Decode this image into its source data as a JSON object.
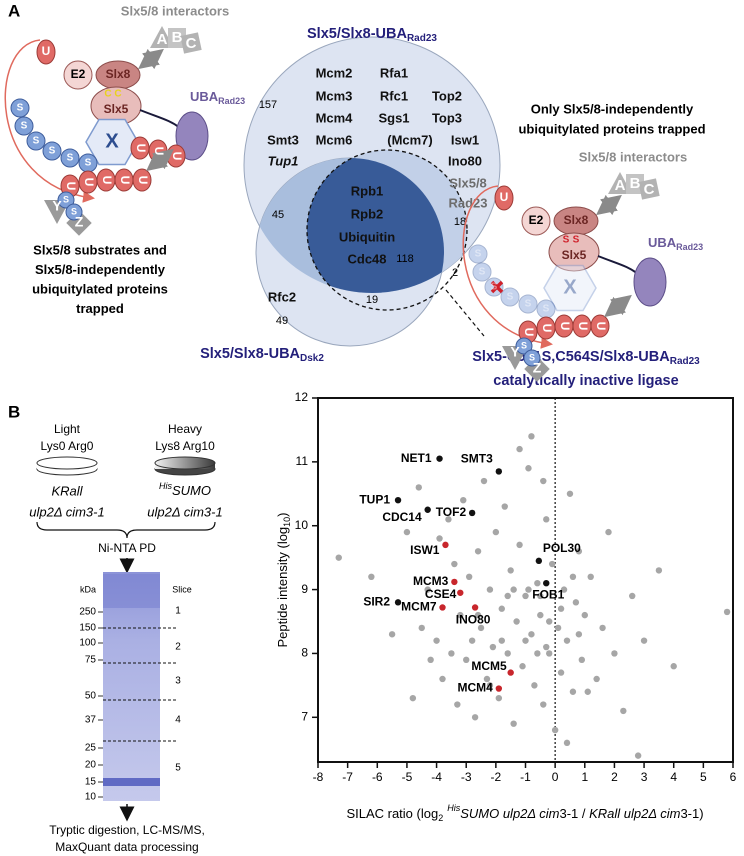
{
  "panel_a": {
    "label": "A",
    "cartoon": {
      "interactors": "Slx5/8 interactors",
      "a": "A",
      "b": "B",
      "c": "C",
      "ub": "U",
      "e2": "E2",
      "slx8": "Slx8",
      "slx5": "Slx5",
      "cys": "C",
      "ser": "S",
      "uba": "UBA",
      "uba_sub": "Rad23",
      "x": "X",
      "y": "Y",
      "z": "Z",
      "sumo": "S"
    },
    "left_caption": [
      "Slx5/8 substrates and",
      "Slx5/8-independently",
      "ubiquitylated proteins",
      "trapped"
    ],
    "right_caption": [
      "Only Slx5/8-independently",
      "ubiquitylated proteins trapped"
    ],
    "venn": {
      "rad23_title": "Slx5/Slx8-UBA",
      "rad23_sub": "Rad23",
      "dsk2_title": "Slx5/Slx8-UBA",
      "dsk2_sub": "Dsk2",
      "inactive_title": "Slx5-C561S,C564S/Slx8-UBA",
      "inactive_sub": "Rad23",
      "inactive_note": "catalytically inactive ligase",
      "rad23_only_proteins": [
        "Mcm2",
        "Rfa1",
        "Mcm3",
        "Rfc1",
        "Top2",
        "Mcm4",
        "Sgs1",
        "Top3",
        "Smt3",
        "Mcm6",
        "(Mcm7)",
        "Isw1",
        "Tup1",
        "Ino80"
      ],
      "bait_label": [
        "Slx5/8",
        "Rad23"
      ],
      "core_proteins": [
        "Rpb1",
        "Rpb2",
        "Ubiquitin",
        "Cdc48"
      ],
      "dsk2_only_proteins": [
        "Rfc2"
      ],
      "counts": {
        "rad23_only": 157,
        "rad23_dsk2": 45,
        "rad23_inactive": 18,
        "all_three": 118,
        "dsk2_inactive": 2,
        "inactive_only": 19,
        "dsk2_only": 49
      }
    }
  },
  "panel_b": {
    "label": "B",
    "light": {
      "title": "Light",
      "label": "Lys0 Arg0",
      "strain_top": "KRall",
      "strain_bottom": "ulp2Δ cim3-1"
    },
    "heavy": {
      "title": "Heavy",
      "label": "Lys8 Arg10",
      "strain_sup": "His",
      "strain_top": "SUMO",
      "strain_bottom": "ulp2Δ cim3-1"
    },
    "pulldown": "Ni-NTA PD",
    "gel": {
      "unit": "kDa",
      "slice_title": "Slice",
      "markers": [
        250,
        150,
        100,
        75,
        50,
        37,
        25,
        20,
        15,
        10
      ],
      "slices": [
        1,
        2,
        3,
        4,
        5
      ]
    },
    "footer": [
      "Tryptic digestion, LC-MS/MS,",
      "MaxQuant data processing"
    ]
  },
  "chart_data": {
    "type": "scatter",
    "xlabel_parts": [
      "SILAC ratio (log",
      "2",
      "His",
      "SUMO ulp2Δ cim",
      "3-1 / ",
      "KRall ulp2Δ cim",
      "3-1)"
    ],
    "ylabel_parts": [
      "Peptide intensity (log",
      "10",
      ")"
    ],
    "xlim": [
      -8,
      6
    ],
    "ylim": [
      6.3,
      12
    ],
    "xticks": [
      -8,
      -7,
      -6,
      -5,
      -4,
      -3,
      -2,
      -1,
      0,
      1,
      2,
      3,
      4,
      5,
      6
    ],
    "yticks": [
      7,
      8,
      9,
      10,
      11,
      12
    ],
    "reference_x": 0,
    "background": {
      "color": "#a6a6a6",
      "x": [
        -7.3,
        -6.2,
        -5.5,
        -5.0,
        -4.8,
        -4.6,
        -4.5,
        -4.3,
        -4.2,
        -4.0,
        -3.9,
        -3.8,
        -3.6,
        -3.5,
        -3.4,
        -3.3,
        -3.2,
        -3.1,
        -3.0,
        -2.9,
        -2.8,
        -2.7,
        -2.6,
        -2.5,
        -2.4,
        -2.3,
        -2.2,
        -2.1,
        -2.0,
        -1.9,
        -1.8,
        -1.7,
        -1.6,
        -1.5,
        -1.4,
        -1.3,
        -1.2,
        -1.1,
        -1.0,
        -0.9,
        -0.8,
        -0.7,
        -0.6,
        -0.5,
        -0.4,
        -0.3,
        -0.2,
        -0.1,
        0.1,
        0.2,
        0.3,
        0.4,
        0.5,
        0.6,
        0.7,
        0.8,
        0.9,
        1.0,
        1.2,
        1.4,
        1.6,
        1.8,
        2.0,
        2.3,
        2.6,
        3.0,
        3.5,
        4.0,
        5.8,
        2.8,
        -1.2,
        -0.8,
        -0.4,
        0.0,
        0.4,
        -2.2,
        -1.6,
        -0.6,
        0.2,
        -1.0,
        -0.2,
        0.6,
        -1.8,
        -0.9,
        -0.3,
        0.8,
        -2.6,
        -1.4,
        -0.5,
        1.1
      ],
      "y": [
        9.5,
        9.2,
        8.3,
        9.9,
        7.3,
        10.6,
        8.4,
        9.0,
        7.9,
        8.2,
        9.8,
        7.6,
        10.1,
        8.0,
        9.4,
        7.2,
        8.6,
        10.4,
        7.9,
        9.2,
        8.2,
        7.0,
        9.6,
        8.4,
        10.7,
        7.6,
        9.0,
        8.1,
        9.9,
        7.3,
        8.7,
        10.3,
        8.0,
        9.3,
        6.9,
        8.5,
        9.7,
        7.8,
        8.9,
        10.9,
        8.3,
        7.5,
        9.1,
        8.6,
        7.2,
        10.1,
        8.0,
        9.4,
        8.4,
        7.7,
        9.0,
        8.2,
        10.5,
        7.4,
        8.8,
        9.6,
        7.9,
        8.6,
        9.2,
        7.6,
        8.4,
        9.9,
        8.0,
        7.1,
        8.9,
        8.2,
        9.3,
        7.8,
        8.65,
        6.4,
        11.2,
        11.4,
        10.7,
        6.8,
        6.6,
        7.5,
        8.9,
        8.0,
        8.7,
        8.2,
        8.5,
        9.2,
        8.2,
        9.0,
        8.1,
        8.3,
        8.6,
        9.0,
        8.9,
        7.4
      ]
    },
    "points": [
      {
        "label": "NET1",
        "x": -3.9,
        "y": 11.05,
        "color": "#111111"
      },
      {
        "label": "SMT3",
        "x": -1.9,
        "y": 10.85,
        "color": "#111111"
      },
      {
        "label": "TUP1",
        "x": -5.3,
        "y": 10.4,
        "color": "#111111"
      },
      {
        "label": "CDC14",
        "x": -4.3,
        "y": 10.25,
        "color": "#111111"
      },
      {
        "label": "TOF2",
        "x": -2.8,
        "y": 10.2,
        "color": "#111111"
      },
      {
        "label": "ISW1",
        "x": -3.7,
        "y": 9.7,
        "color": "#c8262c"
      },
      {
        "label": "POL30",
        "x": -0.55,
        "y": 9.45,
        "color": "#111111"
      },
      {
        "label": "MCM3",
        "x": -3.4,
        "y": 9.12,
        "color": "#c8262c"
      },
      {
        "label": "CSE4",
        "x": -3.2,
        "y": 8.95,
        "color": "#c8262c"
      },
      {
        "label": "FOB1",
        "x": -0.3,
        "y": 9.1,
        "color": "#111111"
      },
      {
        "label": "SIR2",
        "x": -5.3,
        "y": 8.8,
        "color": "#111111"
      },
      {
        "label": "MCM7",
        "x": -3.8,
        "y": 8.72,
        "color": "#c8262c"
      },
      {
        "label": "INO80",
        "x": -2.7,
        "y": 8.72,
        "color": "#c8262c"
      },
      {
        "label": "MCM5",
        "x": -1.5,
        "y": 7.7,
        "color": "#c8262c"
      },
      {
        "label": "MCM4",
        "x": -1.9,
        "y": 7.45,
        "color": "#c8262c"
      }
    ]
  }
}
